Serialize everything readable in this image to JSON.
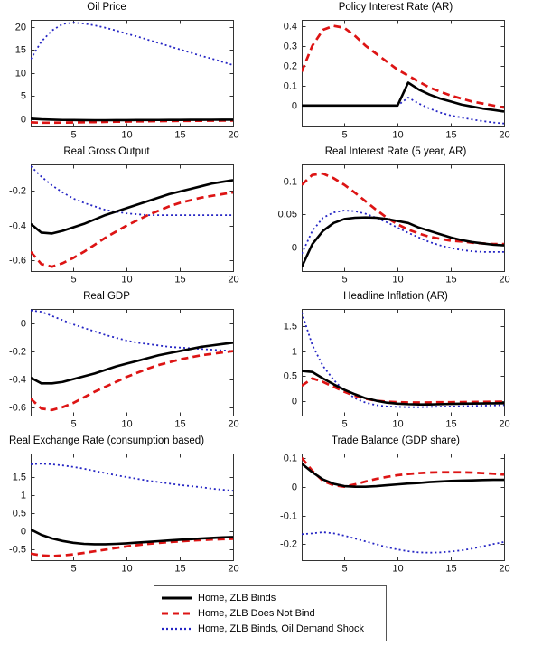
{
  "figure": {
    "background": "#ffffff",
    "axis_color": "#333333",
    "label_color": "#111111",
    "legend": {
      "items": [
        {
          "label": "Home, ZLB Binds",
          "style": "solid",
          "color": "#000000"
        },
        {
          "label": "Home, ZLB Does Not Bind",
          "style": "dashed",
          "color": "#dd1414"
        },
        {
          "label": "Home, ZLB Binds, Oil Demand Shock",
          "style": "dotted",
          "color": "#2525c4"
        }
      ]
    }
  },
  "chart_data": [
    {
      "type": "line",
      "title": "Oil Price",
      "x": [
        1,
        2,
        3,
        4,
        5,
        6,
        7,
        8,
        9,
        10,
        11,
        12,
        13,
        14,
        15,
        16,
        17,
        18,
        19,
        20
      ],
      "xlim": [
        1,
        20
      ],
      "xticks": [
        5,
        10,
        15,
        20
      ],
      "ylim": [
        -1.6,
        21.5
      ],
      "yticks": [
        0,
        5,
        10,
        15,
        20
      ],
      "ytick_labels": [
        "0",
        "5",
        "10",
        "15",
        "20"
      ],
      "series": [
        {
          "name": "Home, ZLB Binds",
          "style": "solid",
          "color": "#000000",
          "values": [
            0.1,
            -0.05,
            -0.12,
            -0.18,
            -0.2,
            -0.22,
            -0.23,
            -0.23,
            -0.22,
            -0.21,
            -0.2,
            -0.19,
            -0.18,
            -0.17,
            -0.16,
            -0.15,
            -0.14,
            -0.13,
            -0.12,
            -0.12
          ]
        },
        {
          "name": "Home, ZLB Does Not Bind",
          "style": "dashed",
          "color": "#dd1414",
          "values": [
            -0.7,
            -0.78,
            -0.78,
            -0.75,
            -0.72,
            -0.68,
            -0.64,
            -0.6,
            -0.56,
            -0.52,
            -0.49,
            -0.46,
            -0.43,
            -0.41,
            -0.39,
            -0.37,
            -0.35,
            -0.33,
            -0.32,
            -0.3
          ]
        },
        {
          "name": "Home, ZLB Binds, Oil Demand Shock",
          "style": "dotted",
          "color": "#2525c4",
          "values": [
            13.0,
            16.8,
            19.2,
            20.6,
            20.9,
            20.7,
            20.3,
            19.8,
            19.2,
            18.5,
            17.9,
            17.2,
            16.5,
            15.8,
            15.1,
            14.4,
            13.7,
            13.1,
            12.4,
            11.7
          ]
        }
      ]
    },
    {
      "type": "line",
      "title": "Policy Interest Rate (AR)",
      "x": [
        1,
        2,
        3,
        4,
        5,
        6,
        7,
        8,
        9,
        10,
        11,
        12,
        13,
        14,
        15,
        16,
        17,
        18,
        19,
        20
      ],
      "xlim": [
        1,
        20
      ],
      "xticks": [
        5,
        10,
        15,
        20
      ],
      "ylim": [
        -0.105,
        0.43
      ],
      "yticks": [
        0,
        0.1,
        0.2,
        0.3,
        0.4
      ],
      "ytick_labels": [
        "0",
        "0.1",
        "0.2",
        "0.3",
        "0.4"
      ],
      "series": [
        {
          "name": "Home, ZLB Binds",
          "style": "solid",
          "color": "#000000",
          "values": [
            0,
            0,
            0,
            0,
            0,
            0,
            0,
            0,
            0,
            0,
            0.115,
            0.08,
            0.055,
            0.035,
            0.02,
            0.005,
            -0.005,
            -0.015,
            -0.022,
            -0.03
          ]
        },
        {
          "name": "Home, ZLB Does Not Bind",
          "style": "dashed",
          "color": "#dd1414",
          "values": [
            0.17,
            0.3,
            0.38,
            0.4,
            0.39,
            0.35,
            0.3,
            0.26,
            0.22,
            0.18,
            0.15,
            0.12,
            0.09,
            0.07,
            0.05,
            0.035,
            0.02,
            0.01,
            0.0,
            -0.01
          ]
        },
        {
          "name": "Home, ZLB Binds, Oil Demand Shock",
          "style": "dotted",
          "color": "#2525c4",
          "values": [
            0,
            0,
            0,
            0,
            0,
            0,
            0,
            0,
            0,
            0,
            0.04,
            0.01,
            -0.015,
            -0.035,
            -0.05,
            -0.06,
            -0.07,
            -0.078,
            -0.085,
            -0.09
          ]
        }
      ]
    },
    {
      "type": "line",
      "title": "Real Gross Output",
      "x": [
        1,
        2,
        3,
        4,
        5,
        6,
        7,
        8,
        9,
        10,
        11,
        12,
        13,
        14,
        15,
        16,
        17,
        18,
        19,
        20
      ],
      "xlim": [
        1,
        20
      ],
      "xticks": [
        5,
        10,
        15,
        20
      ],
      "ylim": [
        -0.66,
        -0.05
      ],
      "yticks": [
        -0.6,
        -0.4,
        -0.2
      ],
      "ytick_labels": [
        "-0.6",
        "-0.4",
        "-0.2"
      ],
      "series": [
        {
          "name": "Home, ZLB Binds",
          "style": "solid",
          "color": "#000000",
          "values": [
            -0.39,
            -0.44,
            -0.445,
            -0.43,
            -0.41,
            -0.39,
            -0.365,
            -0.34,
            -0.32,
            -0.3,
            -0.28,
            -0.26,
            -0.24,
            -0.22,
            -0.205,
            -0.19,
            -0.175,
            -0.16,
            -0.15,
            -0.14
          ]
        },
        {
          "name": "Home, ZLB Does Not Bind",
          "style": "dashed",
          "color": "#dd1414",
          "values": [
            -0.55,
            -0.62,
            -0.635,
            -0.615,
            -0.585,
            -0.55,
            -0.51,
            -0.47,
            -0.435,
            -0.4,
            -0.37,
            -0.34,
            -0.315,
            -0.29,
            -0.27,
            -0.255,
            -0.24,
            -0.23,
            -0.22,
            -0.21
          ]
        },
        {
          "name": "Home, ZLB Binds, Oil Demand Shock",
          "style": "dotted",
          "color": "#2525c4",
          "values": [
            -0.06,
            -0.12,
            -0.17,
            -0.21,
            -0.245,
            -0.27,
            -0.29,
            -0.31,
            -0.32,
            -0.33,
            -0.335,
            -0.34,
            -0.34,
            -0.34,
            -0.34,
            -0.34,
            -0.34,
            -0.34,
            -0.34,
            -0.34
          ]
        }
      ]
    },
    {
      "type": "line",
      "title": "Real Interest Rate (5 year, AR)",
      "x": [
        1,
        2,
        3,
        4,
        5,
        6,
        7,
        8,
        9,
        10,
        11,
        12,
        13,
        14,
        15,
        16,
        17,
        18,
        19,
        20
      ],
      "xlim": [
        1,
        20
      ],
      "xticks": [
        5,
        10,
        15,
        20
      ],
      "ylim": [
        -0.036,
        0.126
      ],
      "yticks": [
        0,
        0.05,
        0.1
      ],
      "ytick_labels": [
        "0",
        "0.05",
        "0.1"
      ],
      "series": [
        {
          "name": "Home, ZLB Binds",
          "style": "solid",
          "color": "#000000",
          "values": [
            -0.03,
            0.005,
            0.025,
            0.037,
            0.043,
            0.045,
            0.0455,
            0.045,
            0.043,
            0.04,
            0.037,
            0.03,
            0.025,
            0.02,
            0.015,
            0.011,
            0.008,
            0.006,
            0.004,
            0.003
          ]
        },
        {
          "name": "Home, ZLB Does Not Bind",
          "style": "dashed",
          "color": "#dd1414",
          "values": [
            0.095,
            0.11,
            0.112,
            0.105,
            0.095,
            0.083,
            0.07,
            0.057,
            0.045,
            0.035,
            0.027,
            0.021,
            0.016,
            0.013,
            0.01,
            0.009,
            0.007,
            0.006,
            0.005,
            0.005
          ]
        },
        {
          "name": "Home, ZLB Binds, Oil Demand Shock",
          "style": "dotted",
          "color": "#2525c4",
          "values": [
            -0.01,
            0.025,
            0.045,
            0.053,
            0.056,
            0.055,
            0.051,
            0.045,
            0.038,
            0.03,
            0.022,
            0.015,
            0.008,
            0.003,
            -0.001,
            -0.004,
            -0.006,
            -0.007,
            -0.007,
            -0.007
          ]
        }
      ]
    },
    {
      "type": "line",
      "title": "Real GDP",
      "x": [
        1,
        2,
        3,
        4,
        5,
        6,
        7,
        8,
        9,
        10,
        11,
        12,
        13,
        14,
        15,
        16,
        17,
        18,
        19,
        20
      ],
      "xlim": [
        1,
        20
      ],
      "xticks": [
        5,
        10,
        15,
        20
      ],
      "ylim": [
        -0.66,
        0.1
      ],
      "yticks": [
        -0.6,
        -0.4,
        -0.2,
        0
      ],
      "ytick_labels": [
        "-0.6",
        "-0.4",
        "-0.2",
        "0"
      ],
      "series": [
        {
          "name": "Home, ZLB Binds",
          "style": "solid",
          "color": "#000000",
          "values": [
            -0.39,
            -0.43,
            -0.43,
            -0.42,
            -0.4,
            -0.38,
            -0.36,
            -0.335,
            -0.31,
            -0.29,
            -0.27,
            -0.25,
            -0.23,
            -0.215,
            -0.2,
            -0.185,
            -0.17,
            -0.16,
            -0.15,
            -0.14
          ]
        },
        {
          "name": "Home, ZLB Does Not Bind",
          "style": "dashed",
          "color": "#dd1414",
          "values": [
            -0.54,
            -0.61,
            -0.62,
            -0.6,
            -0.57,
            -0.53,
            -0.49,
            -0.455,
            -0.42,
            -0.385,
            -0.355,
            -0.325,
            -0.3,
            -0.28,
            -0.26,
            -0.245,
            -0.23,
            -0.22,
            -0.21,
            -0.2
          ]
        },
        {
          "name": "Home, ZLB Binds, Oil Demand Shock",
          "style": "dotted",
          "color": "#2525c4",
          "values": [
            0.09,
            0.08,
            0.05,
            0.02,
            -0.01,
            -0.035,
            -0.06,
            -0.085,
            -0.105,
            -0.125,
            -0.14,
            -0.15,
            -0.16,
            -0.17,
            -0.175,
            -0.18,
            -0.185,
            -0.19,
            -0.195,
            -0.2
          ]
        }
      ]
    },
    {
      "type": "line",
      "title": "Headline Inflation (AR)",
      "x": [
        1,
        2,
        3,
        4,
        5,
        6,
        7,
        8,
        9,
        10,
        11,
        12,
        13,
        14,
        15,
        16,
        17,
        18,
        19,
        20
      ],
      "xlim": [
        1,
        20
      ],
      "xticks": [
        5,
        10,
        15,
        20
      ],
      "ylim": [
        -0.3,
        1.85
      ],
      "yticks": [
        0,
        0.5,
        1,
        1.5
      ],
      "ytick_labels": [
        "0",
        "0.5",
        "1",
        "1.5"
      ],
      "series": [
        {
          "name": "Home, ZLB Binds",
          "style": "solid",
          "color": "#000000",
          "values": [
            0.6,
            0.58,
            0.45,
            0.33,
            0.22,
            0.13,
            0.05,
            0.0,
            -0.04,
            -0.06,
            -0.07,
            -0.075,
            -0.075,
            -0.07,
            -0.065,
            -0.06,
            -0.058,
            -0.055,
            -0.052,
            -0.05
          ]
        },
        {
          "name": "Home, ZLB Does Not Bind",
          "style": "dashed",
          "color": "#dd1414",
          "values": [
            0.3,
            0.45,
            0.38,
            0.28,
            0.18,
            0.1,
            0.04,
            0.0,
            -0.02,
            -0.03,
            -0.035,
            -0.035,
            -0.035,
            -0.03,
            -0.03,
            -0.028,
            -0.026,
            -0.024,
            -0.022,
            -0.02
          ]
        },
        {
          "name": "Home, ZLB Binds, Oil Demand Shock",
          "style": "dotted",
          "color": "#2525c4",
          "values": [
            1.78,
            1.12,
            0.7,
            0.42,
            0.2,
            0.05,
            -0.04,
            -0.09,
            -0.115,
            -0.125,
            -0.13,
            -0.13,
            -0.125,
            -0.12,
            -0.115,
            -0.11,
            -0.105,
            -0.1,
            -0.095,
            -0.09
          ]
        }
      ]
    },
    {
      "type": "line",
      "title": "Real Exchange Rate (consumption based)",
      "x": [
        1,
        2,
        3,
        4,
        5,
        6,
        7,
        8,
        9,
        10,
        11,
        12,
        13,
        14,
        15,
        16,
        17,
        18,
        19,
        20
      ],
      "xlim": [
        1,
        20
      ],
      "xticks": [
        5,
        10,
        15,
        20
      ],
      "ylim": [
        -0.8,
        2.15
      ],
      "yticks": [
        -0.5,
        0,
        0.5,
        1,
        1.5
      ],
      "ytick_labels": [
        "-0.5",
        "0",
        "0.5",
        "1",
        "1.5"
      ],
      "series": [
        {
          "name": "Home, ZLB Binds",
          "style": "solid",
          "color": "#000000",
          "values": [
            0.05,
            -0.1,
            -0.2,
            -0.27,
            -0.32,
            -0.35,
            -0.36,
            -0.36,
            -0.35,
            -0.335,
            -0.315,
            -0.295,
            -0.275,
            -0.255,
            -0.235,
            -0.22,
            -0.2,
            -0.185,
            -0.17,
            -0.16
          ]
        },
        {
          "name": "Home, ZLB Does Not Bind",
          "style": "dashed",
          "color": "#dd1414",
          "values": [
            -0.62,
            -0.67,
            -0.685,
            -0.67,
            -0.64,
            -0.6,
            -0.555,
            -0.51,
            -0.465,
            -0.42,
            -0.385,
            -0.35,
            -0.325,
            -0.3,
            -0.28,
            -0.26,
            -0.245,
            -0.23,
            -0.22,
            -0.21
          ]
        },
        {
          "name": "Home, ZLB Binds, Oil Demand Shock",
          "style": "dotted",
          "color": "#2525c4",
          "values": [
            1.85,
            1.87,
            1.85,
            1.82,
            1.78,
            1.73,
            1.67,
            1.61,
            1.55,
            1.5,
            1.45,
            1.4,
            1.36,
            1.32,
            1.28,
            1.25,
            1.22,
            1.18,
            1.15,
            1.12
          ]
        }
      ]
    },
    {
      "type": "line",
      "title": "Trade Balance (GDP share)",
      "x": [
        1,
        2,
        3,
        4,
        5,
        6,
        7,
        8,
        9,
        10,
        11,
        12,
        13,
        14,
        15,
        16,
        17,
        18,
        19,
        20
      ],
      "xlim": [
        1,
        20
      ],
      "xticks": [
        5,
        10,
        15,
        20
      ],
      "ylim": [
        -0.255,
        0.115
      ],
      "yticks": [
        -0.2,
        -0.1,
        0,
        0.1
      ],
      "ytick_labels": [
        "-0.2",
        "-0.1",
        "0",
        "0.1"
      ],
      "series": [
        {
          "name": "Home, ZLB Binds",
          "style": "solid",
          "color": "#000000",
          "values": [
            0.08,
            0.05,
            0.025,
            0.01,
            0.002,
            0.0,
            0.0,
            0.002,
            0.005,
            0.008,
            0.011,
            0.013,
            0.016,
            0.018,
            0.02,
            0.021,
            0.022,
            0.023,
            0.024,
            0.024
          ]
        },
        {
          "name": "Home, ZLB Does Not Bind",
          "style": "dashed",
          "color": "#dd1414",
          "values": [
            0.1,
            0.055,
            0.02,
            0.005,
            0.0,
            0.008,
            0.018,
            0.027,
            0.034,
            0.04,
            0.044,
            0.047,
            0.049,
            0.05,
            0.05,
            0.05,
            0.049,
            0.047,
            0.045,
            0.042
          ]
        },
        {
          "name": "Home, ZLB Binds, Oil Demand Shock",
          "style": "dotted",
          "color": "#2525c4",
          "values": [
            -0.165,
            -0.162,
            -0.158,
            -0.162,
            -0.17,
            -0.18,
            -0.19,
            -0.2,
            -0.21,
            -0.218,
            -0.224,
            -0.228,
            -0.229,
            -0.228,
            -0.225,
            -0.221,
            -0.215,
            -0.207,
            -0.199,
            -0.192
          ]
        }
      ]
    }
  ]
}
